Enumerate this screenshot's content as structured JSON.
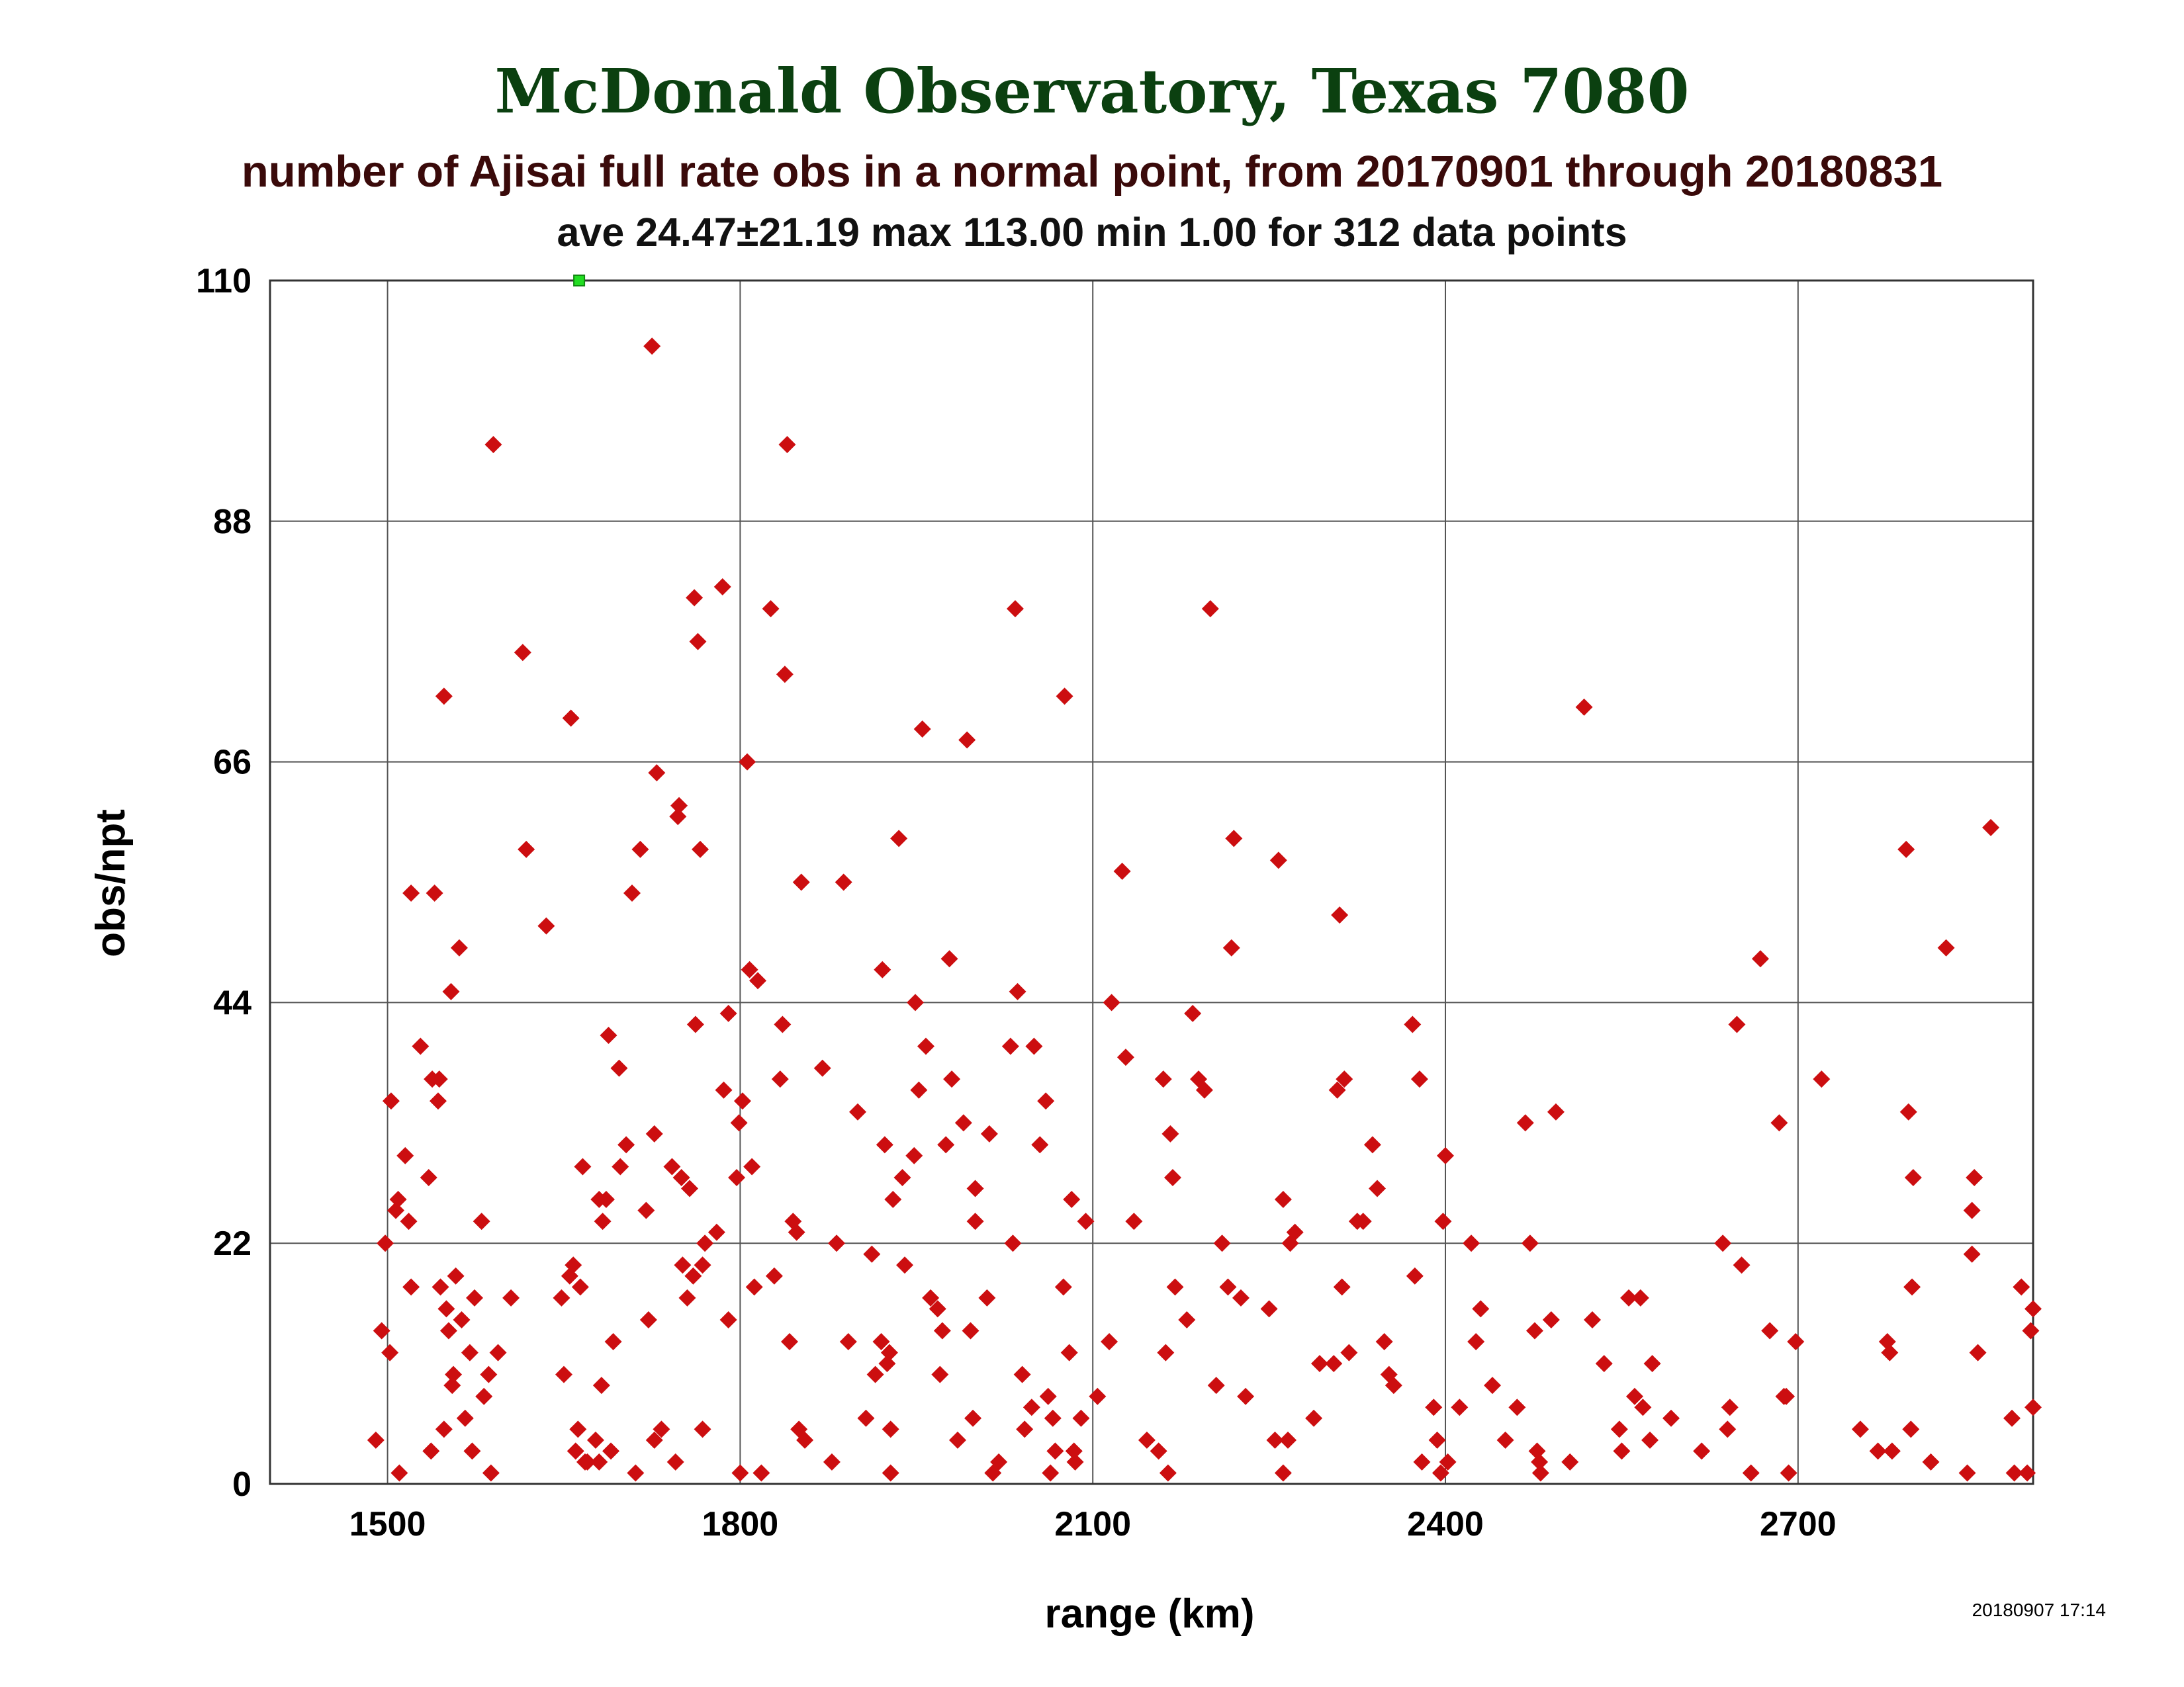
{
  "chart_data": {
    "type": "scatter",
    "title": "McDonald Observatory, Texas 7080",
    "subtitle": "number of Ajisai full rate obs in a normal point, from 20170901 through 20180831",
    "stats": "ave 24.47±21.19 max 113.00 min 1.00 for 312 data points",
    "xlabel": "range (km)",
    "ylabel": "obs/npt",
    "timestamp": "20180907 17:14",
    "xlim": [
      1400,
      2900
    ],
    "ylim": [
      0,
      110
    ],
    "x_ticks": [
      1500,
      1800,
      2100,
      2400,
      2700
    ],
    "x_tick_labels": [
      "1500",
      "1800",
      "2100",
      "2400",
      "2700"
    ],
    "y_ticks": [
      0,
      22,
      44,
      66,
      88,
      110
    ],
    "y_tick_labels": [
      "0",
      "22",
      "44",
      "66",
      "88",
      "110"
    ],
    "grid": true,
    "colors": {
      "title": "#0b4010",
      "subtitle": "#3a0a0a",
      "points": "#cc0e10",
      "outlier": "#22dd22"
    },
    "series": [
      {
        "marker": "diamond",
        "points": [
          [
            1490,
            4
          ],
          [
            1495,
            14
          ],
          [
            1498,
            22
          ],
          [
            1502,
            12
          ],
          [
            1503,
            35
          ],
          [
            1507,
            25
          ],
          [
            1509,
            26
          ],
          [
            1510,
            1
          ],
          [
            1515,
            30
          ],
          [
            1518,
            24
          ],
          [
            1520,
            18
          ],
          [
            1520,
            54
          ],
          [
            1528,
            40
          ],
          [
            1535,
            28
          ],
          [
            1537,
            3
          ],
          [
            1538,
            37
          ],
          [
            1540,
            54
          ],
          [
            1543,
            35
          ],
          [
            1544,
            37
          ],
          [
            1545,
            18
          ],
          [
            1548,
            5
          ],
          [
            1548,
            72
          ],
          [
            1550,
            16
          ],
          [
            1552,
            14
          ],
          [
            1554,
            45
          ],
          [
            1555,
            9
          ],
          [
            1556,
            10
          ],
          [
            1558,
            19
          ],
          [
            1561,
            49
          ],
          [
            1563,
            15
          ],
          [
            1566,
            6
          ],
          [
            1570,
            12
          ],
          [
            1572,
            3
          ],
          [
            1574,
            17
          ],
          [
            1580,
            24
          ],
          [
            1582,
            8
          ],
          [
            1586,
            10
          ],
          [
            1588,
            1
          ],
          [
            1590,
            95
          ],
          [
            1594,
            12
          ],
          [
            1605,
            17
          ],
          [
            1615,
            76
          ],
          [
            1618,
            58
          ],
          [
            1635,
            51
          ],
          [
            1648,
            17
          ],
          [
            1650,
            10
          ],
          [
            1655,
            19
          ],
          [
            1656,
            70
          ],
          [
            1658,
            20
          ],
          [
            1660,
            3
          ],
          [
            1662,
            5
          ],
          [
            1664,
            18
          ],
          [
            1666,
            29
          ],
          [
            1668,
            2
          ],
          [
            1670,
            2
          ],
          [
            1677,
            4
          ],
          [
            1680,
            26
          ],
          [
            1680,
            2
          ],
          [
            1682,
            9
          ],
          [
            1683,
            24
          ],
          [
            1686,
            26
          ],
          [
            1688,
            41
          ],
          [
            1690,
            3
          ],
          [
            1692,
            13
          ],
          [
            1697,
            38
          ],
          [
            1698,
            29
          ],
          [
            1703,
            31
          ],
          [
            1708,
            54
          ],
          [
            1711,
            1
          ],
          [
            1715,
            58
          ],
          [
            1720,
            25
          ],
          [
            1722,
            15
          ],
          [
            1725,
            104
          ],
          [
            1727,
            32
          ],
          [
            1727,
            4
          ],
          [
            1729,
            65
          ],
          [
            1733,
            5
          ],
          [
            1742,
            29
          ],
          [
            1745,
            2
          ],
          [
            1747,
            61
          ],
          [
            1748,
            62
          ],
          [
            1750,
            28
          ],
          [
            1751,
            20
          ],
          [
            1755,
            17
          ],
          [
            1757,
            27
          ],
          [
            1760,
            19
          ],
          [
            1761,
            81
          ],
          [
            1762,
            42
          ],
          [
            1764,
            77
          ],
          [
            1766,
            58
          ],
          [
            1768,
            20
          ],
          [
            1768,
            5
          ],
          [
            1770,
            22
          ],
          [
            1780,
            23
          ],
          [
            1785,
            82
          ],
          [
            1786,
            36
          ],
          [
            1790,
            43
          ],
          [
            1790,
            15
          ],
          [
            1797,
            28
          ],
          [
            1799,
            33
          ],
          [
            1800,
            1
          ],
          [
            1802,
            35
          ],
          [
            1806,
            66
          ],
          [
            1808,
            47
          ],
          [
            1810,
            29
          ],
          [
            1812,
            18
          ],
          [
            1815,
            46
          ],
          [
            1818,
            1
          ],
          [
            1826,
            80
          ],
          [
            1829,
            19
          ],
          [
            1834,
            37
          ],
          [
            1836,
            42
          ],
          [
            1838,
            74
          ],
          [
            1840,
            95
          ],
          [
            1842,
            13
          ],
          [
            1845,
            24
          ],
          [
            1848,
            23
          ],
          [
            1850,
            5
          ],
          [
            1852,
            55
          ],
          [
            1855,
            4
          ],
          [
            1870,
            38
          ],
          [
            1878,
            2
          ],
          [
            1882,
            22
          ],
          [
            1888,
            55
          ],
          [
            1892,
            13
          ],
          [
            1900,
            34
          ],
          [
            1907,
            6
          ],
          [
            1912,
            21
          ],
          [
            1915,
            10
          ],
          [
            1920,
            13
          ],
          [
            1921,
            47
          ],
          [
            1923,
            31
          ],
          [
            1925,
            11
          ],
          [
            1927,
            12
          ],
          [
            1928,
            5
          ],
          [
            1928,
            1
          ],
          [
            1930,
            26
          ],
          [
            1935,
            59
          ],
          [
            1938,
            28
          ],
          [
            1940,
            20
          ],
          [
            1948,
            30
          ],
          [
            1949,
            44
          ],
          [
            1952,
            36
          ],
          [
            1955,
            69
          ],
          [
            1958,
            40
          ],
          [
            1962,
            17
          ],
          [
            1968,
            16
          ],
          [
            1970,
            10
          ],
          [
            1972,
            14
          ],
          [
            1975,
            31
          ],
          [
            1978,
            48
          ],
          [
            1980,
            37
          ],
          [
            1985,
            4
          ],
          [
            1990,
            33
          ],
          [
            1993,
            68
          ],
          [
            1996,
            14
          ],
          [
            1998,
            6
          ],
          [
            2000,
            27
          ],
          [
            2000,
            24
          ],
          [
            2010,
            17
          ],
          [
            2012,
            32
          ],
          [
            2015,
            1
          ],
          [
            2020,
            2
          ],
          [
            2030,
            40
          ],
          [
            2032,
            22
          ],
          [
            2034,
            80
          ],
          [
            2036,
            45
          ],
          [
            2040,
            10
          ],
          [
            2042,
            5
          ],
          [
            2048,
            7
          ],
          [
            2050,
            40
          ],
          [
            2055,
            31
          ],
          [
            2060,
            35
          ],
          [
            2062,
            8
          ],
          [
            2064,
            1
          ],
          [
            2066,
            6
          ],
          [
            2068,
            3
          ],
          [
            2075,
            18
          ],
          [
            2076,
            72
          ],
          [
            2080,
            12
          ],
          [
            2082,
            26
          ],
          [
            2084,
            3
          ],
          [
            2085,
            2
          ],
          [
            2090,
            6
          ],
          [
            2094,
            24
          ],
          [
            2104,
            8
          ],
          [
            2114,
            13
          ],
          [
            2116,
            44
          ],
          [
            2125,
            56
          ],
          [
            2128,
            39
          ],
          [
            2135,
            24
          ],
          [
            2146,
            4
          ],
          [
            2156,
            3
          ],
          [
            2160,
            37
          ],
          [
            2162,
            12
          ],
          [
            2164,
            1
          ],
          [
            2166,
            32
          ],
          [
            2168,
            28
          ],
          [
            2170,
            18
          ],
          [
            2180,
            15
          ],
          [
            2185,
            43
          ],
          [
            2190,
            37
          ],
          [
            2195,
            36
          ],
          [
            2200,
            80
          ],
          [
            2205,
            9
          ],
          [
            2210,
            22
          ],
          [
            2215,
            18
          ],
          [
            2218,
            49
          ],
          [
            2220,
            59
          ],
          [
            2226,
            17
          ],
          [
            2230,
            8
          ],
          [
            2250,
            16
          ],
          [
            2255,
            4
          ],
          [
            2258,
            57
          ],
          [
            2262,
            1
          ],
          [
            2262,
            26
          ],
          [
            2266,
            4
          ],
          [
            2268,
            22
          ],
          [
            2272,
            23
          ],
          [
            2288,
            6
          ],
          [
            2293,
            11
          ],
          [
            2305,
            11
          ],
          [
            2308,
            36
          ],
          [
            2310,
            52
          ],
          [
            2312,
            18
          ],
          [
            2314,
            37
          ],
          [
            2318,
            12
          ],
          [
            2325,
            24
          ],
          [
            2330,
            24
          ],
          [
            2338,
            31
          ],
          [
            2342,
            27
          ],
          [
            2348,
            13
          ],
          [
            2352,
            10
          ],
          [
            2356,
            9
          ],
          [
            2372,
            42
          ],
          [
            2374,
            19
          ],
          [
            2378,
            37
          ],
          [
            2380,
            2
          ],
          [
            2390,
            7
          ],
          [
            2393,
            4
          ],
          [
            2396,
            1
          ],
          [
            2398,
            24
          ],
          [
            2400,
            30
          ],
          [
            2402,
            2
          ],
          [
            2412,
            7
          ],
          [
            2422,
            22
          ],
          [
            2426,
            13
          ],
          [
            2430,
            16
          ],
          [
            2440,
            9
          ],
          [
            2451,
            4
          ],
          [
            2461,
            7
          ],
          [
            2468,
            33
          ],
          [
            2472,
            22
          ],
          [
            2476,
            14
          ],
          [
            2478,
            3
          ],
          [
            2480,
            2
          ],
          [
            2481,
            1
          ],
          [
            2490,
            15
          ],
          [
            2494,
            34
          ],
          [
            2506,
            2
          ],
          [
            2518,
            71
          ],
          [
            2525,
            15
          ],
          [
            2535,
            11
          ],
          [
            2548,
            5
          ],
          [
            2550,
            3
          ],
          [
            2556,
            17
          ],
          [
            2561,
            8
          ],
          [
            2566,
            17
          ],
          [
            2568,
            7
          ],
          [
            2574,
            4
          ],
          [
            2576,
            11
          ],
          [
            2592,
            6
          ],
          [
            2618,
            3
          ],
          [
            2636,
            22
          ],
          [
            2640,
            5
          ],
          [
            2642,
            7
          ],
          [
            2648,
            42
          ],
          [
            2652,
            20
          ],
          [
            2660,
            1
          ],
          [
            2668,
            48
          ],
          [
            2676,
            14
          ],
          [
            2684,
            33
          ],
          [
            2688,
            8
          ],
          [
            2690,
            8
          ],
          [
            2692,
            1
          ],
          [
            2698,
            13
          ],
          [
            2720,
            37
          ],
          [
            2753,
            5
          ],
          [
            2768,
            3
          ],
          [
            2776,
            13
          ],
          [
            2778,
            12
          ],
          [
            2780,
            3
          ],
          [
            2792,
            58
          ],
          [
            2794,
            34
          ],
          [
            2796,
            5
          ],
          [
            2797,
            18
          ],
          [
            2798,
            28
          ],
          [
            2813,
            2
          ],
          [
            2826,
            49
          ],
          [
            2844,
            1
          ],
          [
            2848,
            21
          ],
          [
            2848,
            25
          ],
          [
            2850,
            28
          ],
          [
            2853,
            12
          ],
          [
            2864,
            60
          ],
          [
            2882,
            6
          ],
          [
            2884,
            1
          ],
          [
            2890,
            18
          ],
          [
            2895,
            1
          ],
          [
            2898,
            14
          ],
          [
            2908,
            7
          ],
          [
            2916,
            16
          ]
        ]
      },
      {
        "marker": "square",
        "points": [
          [
            1663,
            110
          ]
        ]
      }
    ]
  }
}
